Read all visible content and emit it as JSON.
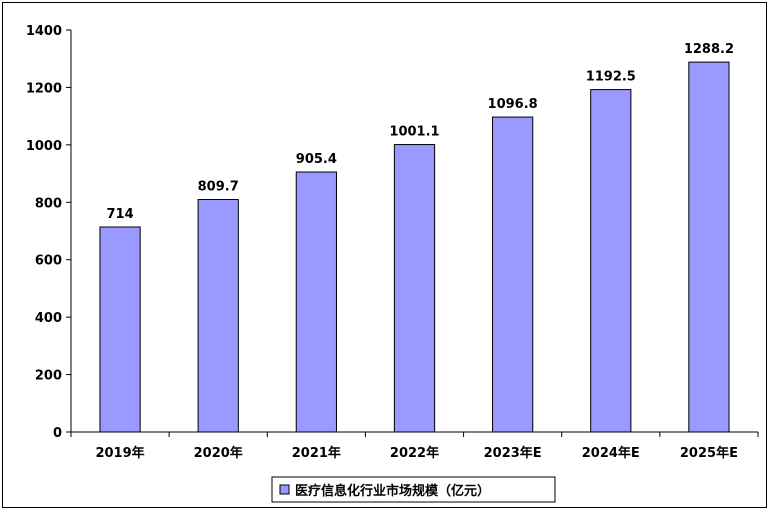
{
  "chart_data": {
    "type": "bar",
    "categories": [
      "2019年",
      "2020年",
      "2021年",
      "2022年",
      "2023年E",
      "2024年E",
      "2025年E"
    ],
    "series": [
      {
        "name": "医疗信息化行业市场规模（亿元）",
        "values": [
          714,
          809.7,
          905.4,
          1001.1,
          1096.8,
          1192.5,
          1288.2
        ]
      }
    ],
    "data_labels": [
      "714",
      "809.7",
      "905.4",
      "1001.1",
      "1096.8",
      "1192.5",
      "1288.2"
    ],
    "y_ticks": [
      "0",
      "200",
      "400",
      "600",
      "800",
      "1000",
      "1200",
      "1400"
    ],
    "ylim": [
      0,
      1400
    ],
    "grid": false,
    "legend_position": "bottom",
    "bar_color": "#9999ff",
    "bar_edge_color": "#000000"
  }
}
